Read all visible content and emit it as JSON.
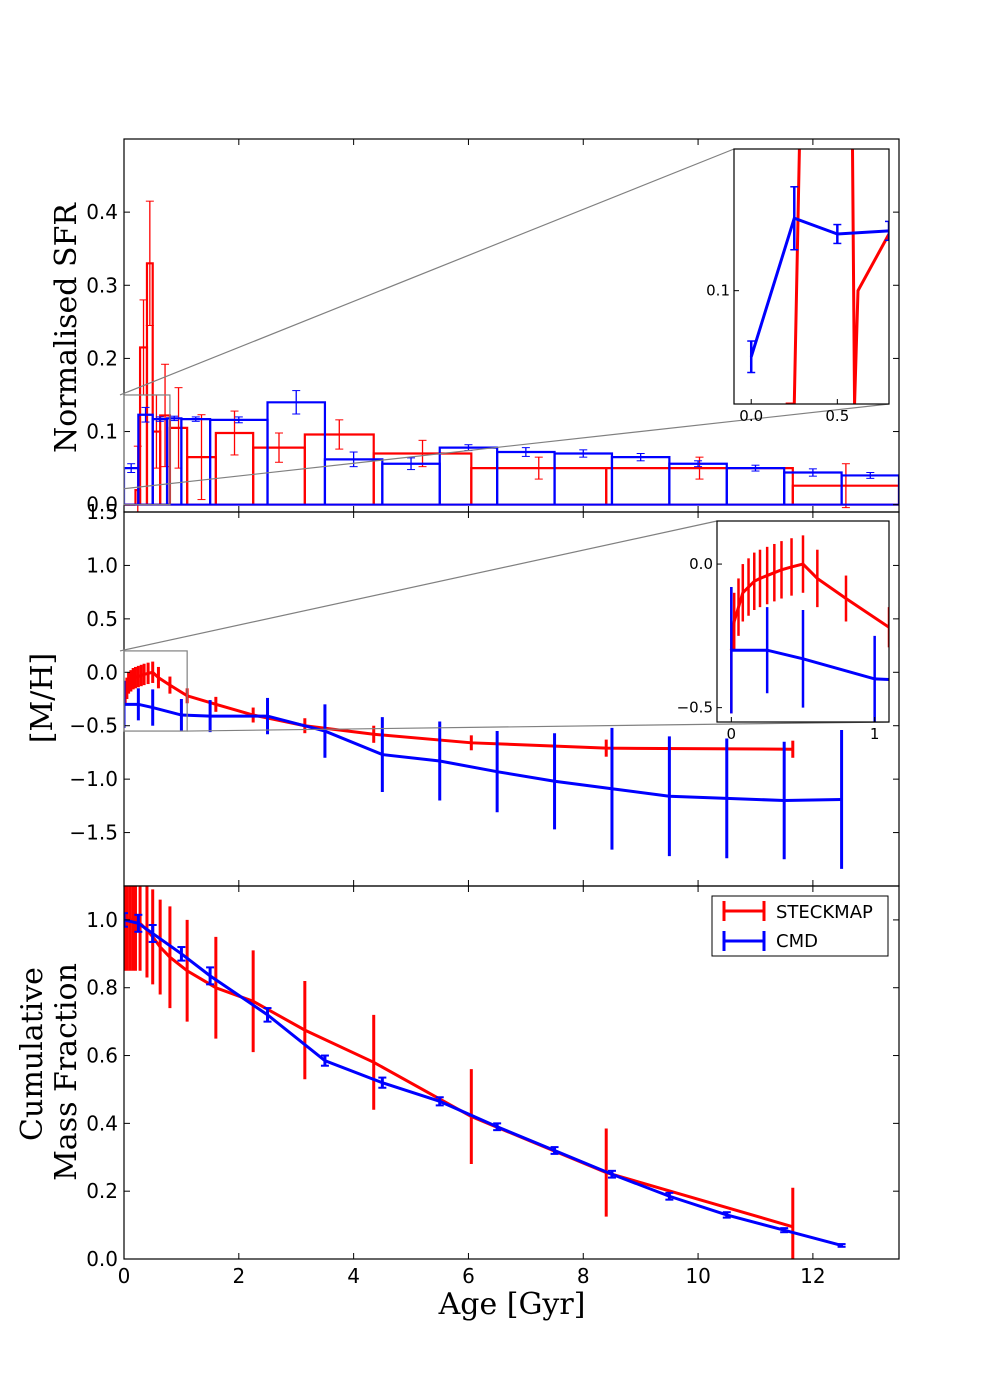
{
  "chart_data": [
    {
      "type": "bar",
      "title": "",
      "xlabel": "",
      "ylabel": "Normalised SFR",
      "xlim": [
        0,
        13.5
      ],
      "ylim": [
        -0.01,
        0.5
      ],
      "yticks": [
        "0.0",
        "0.1",
        "0.2",
        "0.3",
        "0.4"
      ],
      "ytick_values": [
        0.0,
        0.1,
        0.2,
        0.3,
        0.4
      ],
      "series": [
        {
          "name": "STECKMAP",
          "color": "#ff0000",
          "edges": [
            0.0,
            0.2,
            0.28,
            0.4,
            0.5,
            0.63,
            0.8,
            1.1,
            1.6,
            2.25,
            3.15,
            4.35,
            6.05,
            8.4,
            11.65,
            13.5
          ],
          "values": [
            0.0,
            0.02,
            0.215,
            0.33,
            0.1,
            0.122,
            0.105,
            0.065,
            0.098,
            0.078,
            0.096,
            0.07,
            0.05,
            0.05,
            0.026
          ],
          "errors": [
            0.0,
            0.06,
            0.065,
            0.085,
            0.05,
            0.07,
            0.055,
            0.058,
            0.03,
            0.02,
            0.02,
            0.018,
            0.015,
            0.015,
            0.03
          ]
        },
        {
          "name": "CMD",
          "color": "#0000ff",
          "edges": [
            0.0,
            0.25,
            0.5,
            0.75,
            1.0,
            1.5,
            2.5,
            3.5,
            4.5,
            5.5,
            6.5,
            7.5,
            8.5,
            9.5,
            10.5,
            11.5,
            12.5,
            13.5
          ],
          "values": [
            0.05,
            0.123,
            0.117,
            0.118,
            0.117,
            0.116,
            0.14,
            0.062,
            0.056,
            0.078,
            0.072,
            0.07,
            0.065,
            0.056,
            0.05,
            0.044,
            0.04
          ],
          "errors": [
            0.006,
            0.01,
            0.003,
            0.003,
            0.003,
            0.004,
            0.016,
            0.01,
            0.008,
            0.004,
            0.006,
            0.005,
            0.005,
            0.004,
            0.004,
            0.005,
            0.004
          ]
        }
      ],
      "inset": {
        "xlim": [
          -0.1,
          0.8
        ],
        "ylim": [
          0.064,
          0.145
        ],
        "xticks": [
          "0.0",
          "0.5"
        ],
        "xtick_values": [
          0.0,
          0.5
        ],
        "yticks": [
          "0.1"
        ],
        "ytick_values": [
          0.1
        ],
        "cmd_line": {
          "x": [
            0.0,
            0.25,
            0.5,
            0.8
          ],
          "y": [
            0.079,
            0.123,
            0.118,
            0.119
          ],
          "err": [
            0.005,
            0.01,
            0.003,
            0.003
          ]
        },
        "steckmap_line": {
          "x": [
            0.2,
            0.25,
            0.3,
            0.58,
            0.6,
            0.62,
            0.8
          ],
          "y": [
            0.064,
            0.064,
            0.2,
            0.2,
            0.064,
            0.1,
            0.118
          ]
        }
      }
    },
    {
      "type": "line",
      "title": "",
      "xlabel": "",
      "ylabel": "[M/H]",
      "xlim": [
        0,
        13.5
      ],
      "ylim": [
        -2.0,
        1.5
      ],
      "yticks": [
        "1.5",
        "1.0",
        "0.5",
        "0.0",
        "−0.5",
        "−1.0",
        "−1.5"
      ],
      "ytick_values": [
        1.5,
        1.0,
        0.5,
        0.0,
        -0.5,
        -1.0,
        -1.5
      ],
      "series": [
        {
          "name": "STECKMAP",
          "color": "#ff0000",
          "x": [
            0.0,
            0.02,
            0.05,
            0.08,
            0.12,
            0.16,
            0.2,
            0.25,
            0.3,
            0.35,
            0.42,
            0.5,
            0.6,
            0.8,
            1.1,
            1.6,
            2.25,
            3.15,
            4.35,
            6.05,
            8.4,
            11.65
          ],
          "y": [
            -0.3,
            -0.2,
            -0.15,
            -0.1,
            -0.08,
            -0.06,
            -0.05,
            -0.04,
            -0.03,
            -0.02,
            -0.01,
            0.0,
            -0.05,
            -0.12,
            -0.22,
            -0.3,
            -0.4,
            -0.5,
            -0.58,
            -0.66,
            -0.71,
            -0.72
          ],
          "err": [
            0.22,
            0.1,
            0.1,
            0.1,
            0.1,
            0.1,
            0.1,
            0.1,
            0.1,
            0.1,
            0.1,
            0.1,
            0.1,
            0.08,
            0.07,
            0.07,
            0.07,
            0.07,
            0.08,
            0.07,
            0.08,
            0.08
          ]
        },
        {
          "name": "CMD",
          "color": "#0000ff",
          "x": [
            0.0,
            0.25,
            0.5,
            1.0,
            1.5,
            2.5,
            3.5,
            4.5,
            5.5,
            6.5,
            7.5,
            8.5,
            9.5,
            10.5,
            11.5,
            12.5
          ],
          "y": [
            -0.3,
            -0.3,
            -0.33,
            -0.4,
            -0.41,
            -0.41,
            -0.55,
            -0.77,
            -0.83,
            -0.93,
            -1.02,
            -1.09,
            -1.16,
            -1.18,
            -1.2,
            -1.19
          ],
          "err": [
            0.22,
            0.15,
            0.17,
            0.15,
            0.15,
            0.17,
            0.25,
            0.35,
            0.37,
            0.38,
            0.45,
            0.57,
            0.56,
            0.56,
            0.55,
            0.65
          ]
        }
      ],
      "inset": {
        "xlim": [
          -0.1,
          1.1
        ],
        "ylim": [
          -0.55,
          0.15
        ],
        "xticks": [
          "0",
          "1"
        ],
        "xtick_values": [
          0,
          1
        ],
        "yticks": [
          "0.0",
          "−0.5"
        ],
        "ytick_values": [
          0.0,
          -0.5
        ]
      }
    },
    {
      "type": "line",
      "title": "",
      "xlabel": "Age [Gyr]",
      "ylabel_lines": [
        "Cumulative",
        "Mass Fraction"
      ],
      "xlim": [
        0,
        13.5
      ],
      "ylim": [
        0.0,
        1.1
      ],
      "xticks": [
        "0",
        "2",
        "4",
        "6",
        "8",
        "10",
        "12"
      ],
      "xtick_values": [
        0,
        2,
        4,
        6,
        8,
        10,
        12
      ],
      "yticks": [
        "0.0",
        "0.2",
        "0.4",
        "0.6",
        "0.8",
        "1.0"
      ],
      "ytick_values": [
        0.0,
        0.2,
        0.4,
        0.6,
        0.8,
        1.0
      ],
      "legend": [
        "STECKMAP",
        "CMD"
      ],
      "series": [
        {
          "name": "STECKMAP",
          "color": "#ff0000",
          "x": [
            0.0,
            0.05,
            0.1,
            0.15,
            0.2,
            0.28,
            0.4,
            0.5,
            0.63,
            0.8,
            1.1,
            1.6,
            2.25,
            3.15,
            4.35,
            6.05,
            8.4,
            11.65
          ],
          "y": [
            1.0,
            1.0,
            1.0,
            1.0,
            1.0,
            0.99,
            0.97,
            0.95,
            0.92,
            0.89,
            0.85,
            0.8,
            0.76,
            0.675,
            0.58,
            0.42,
            0.255,
            0.095
          ],
          "err": [
            0.15,
            0.15,
            0.15,
            0.15,
            0.15,
            0.14,
            0.14,
            0.14,
            0.14,
            0.15,
            0.15,
            0.15,
            0.15,
            0.145,
            0.14,
            0.14,
            0.13,
            0.115
          ]
        },
        {
          "name": "CMD",
          "color": "#0000ff",
          "x": [
            0.0,
            0.25,
            0.5,
            1.0,
            1.5,
            2.5,
            3.5,
            4.5,
            5.5,
            6.5,
            7.5,
            8.5,
            9.5,
            10.5,
            11.5,
            12.5
          ],
          "y": [
            1.0,
            0.99,
            0.96,
            0.9,
            0.835,
            0.72,
            0.585,
            0.52,
            0.465,
            0.39,
            0.32,
            0.25,
            0.185,
            0.13,
            0.085,
            0.04
          ],
          "err": [
            0.02,
            0.025,
            0.025,
            0.02,
            0.025,
            0.02,
            0.015,
            0.015,
            0.012,
            0.01,
            0.01,
            0.01,
            0.01,
            0.008,
            0.006,
            0.004
          ]
        }
      ]
    }
  ]
}
